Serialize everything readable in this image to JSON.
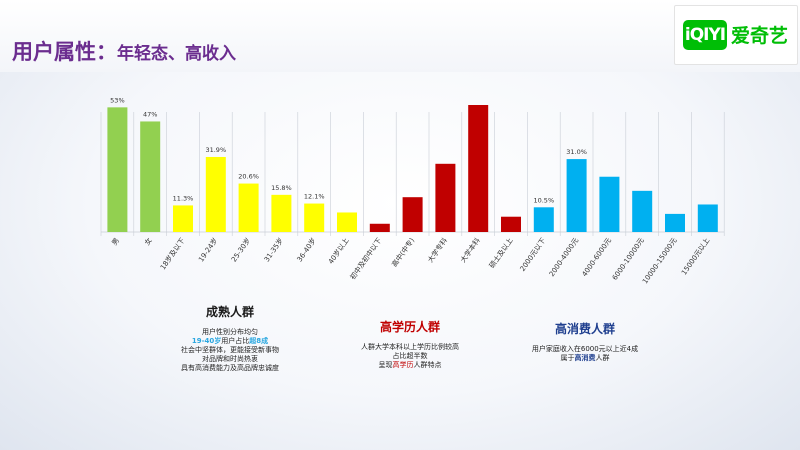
{
  "header": {
    "title": "用户属性：",
    "subtitle": "年轻态、高收入"
  },
  "logo": {
    "mark": "iQIYI",
    "name": "爱奇艺",
    "brand_color": "#00be06"
  },
  "colors": {
    "gender": "#92d050",
    "age": "#ffff00",
    "education": "#c00000",
    "income": "#00b0f0"
  },
  "chart_data": {
    "type": "bar",
    "ylim": [
      0,
      60
    ],
    "grid": "vertical separators",
    "categories": [
      "男",
      "女",
      "18岁及以下",
      "19-24岁",
      "25-30岁",
      "31-35岁",
      "36-40岁",
      "40岁以上",
      "初中及初中以下",
      "高中(中专)",
      "大学专科",
      "大学本科",
      "硕士及以上",
      "2000元以下",
      "2000-4000元",
      "4000-6000元",
      "6000-10000元",
      "10000-15000元",
      "15000元以上"
    ],
    "values": [
      53,
      47,
      11.3,
      31.9,
      20.6,
      15.8,
      12.1,
      8.3,
      3.5,
      14.8,
      29,
      54,
      6.5,
      10.5,
      31.0,
      23.5,
      17.5,
      7.7,
      11.7
    ],
    "groups": [
      "gender",
      "gender",
      "age",
      "age",
      "age",
      "age",
      "age",
      "age",
      "education",
      "education",
      "education",
      "education",
      "education",
      "income",
      "income",
      "income",
      "income",
      "income",
      "income"
    ],
    "data_labels": [
      "53%",
      "47%",
      "11.3%",
      "31.9%",
      "20.6%",
      "15.8%",
      "12.1%",
      "",
      "",
      "",
      "",
      "",
      "",
      "10.5%",
      "31.0%",
      "",
      "",
      "",
      ""
    ]
  },
  "callouts": {
    "mature": {
      "heading": "成熟人群",
      "line1": "用户性别分布均匀",
      "line2_a": "19-40岁",
      "line2_b": "用户占比",
      "line2_c": "超8成",
      "line3": "社会中坚群体，更能接受新事物",
      "line4": "对品牌和时尚热衷",
      "line5": "具有高消费能力及高品牌忠诚度"
    },
    "education": {
      "heading": "高学历人群",
      "line1": "人群大学本科以上学历比例较高",
      "line2": "占比超半数",
      "line3_a": "呈现",
      "line3_b": "高学历",
      "line3_c": "人群特点"
    },
    "income": {
      "heading": "高消费人群",
      "line1": "用户家庭收入在6000元以上近4成",
      "line2_a": "属于",
      "line2_b": "高消费",
      "line2_c": "人群"
    }
  }
}
